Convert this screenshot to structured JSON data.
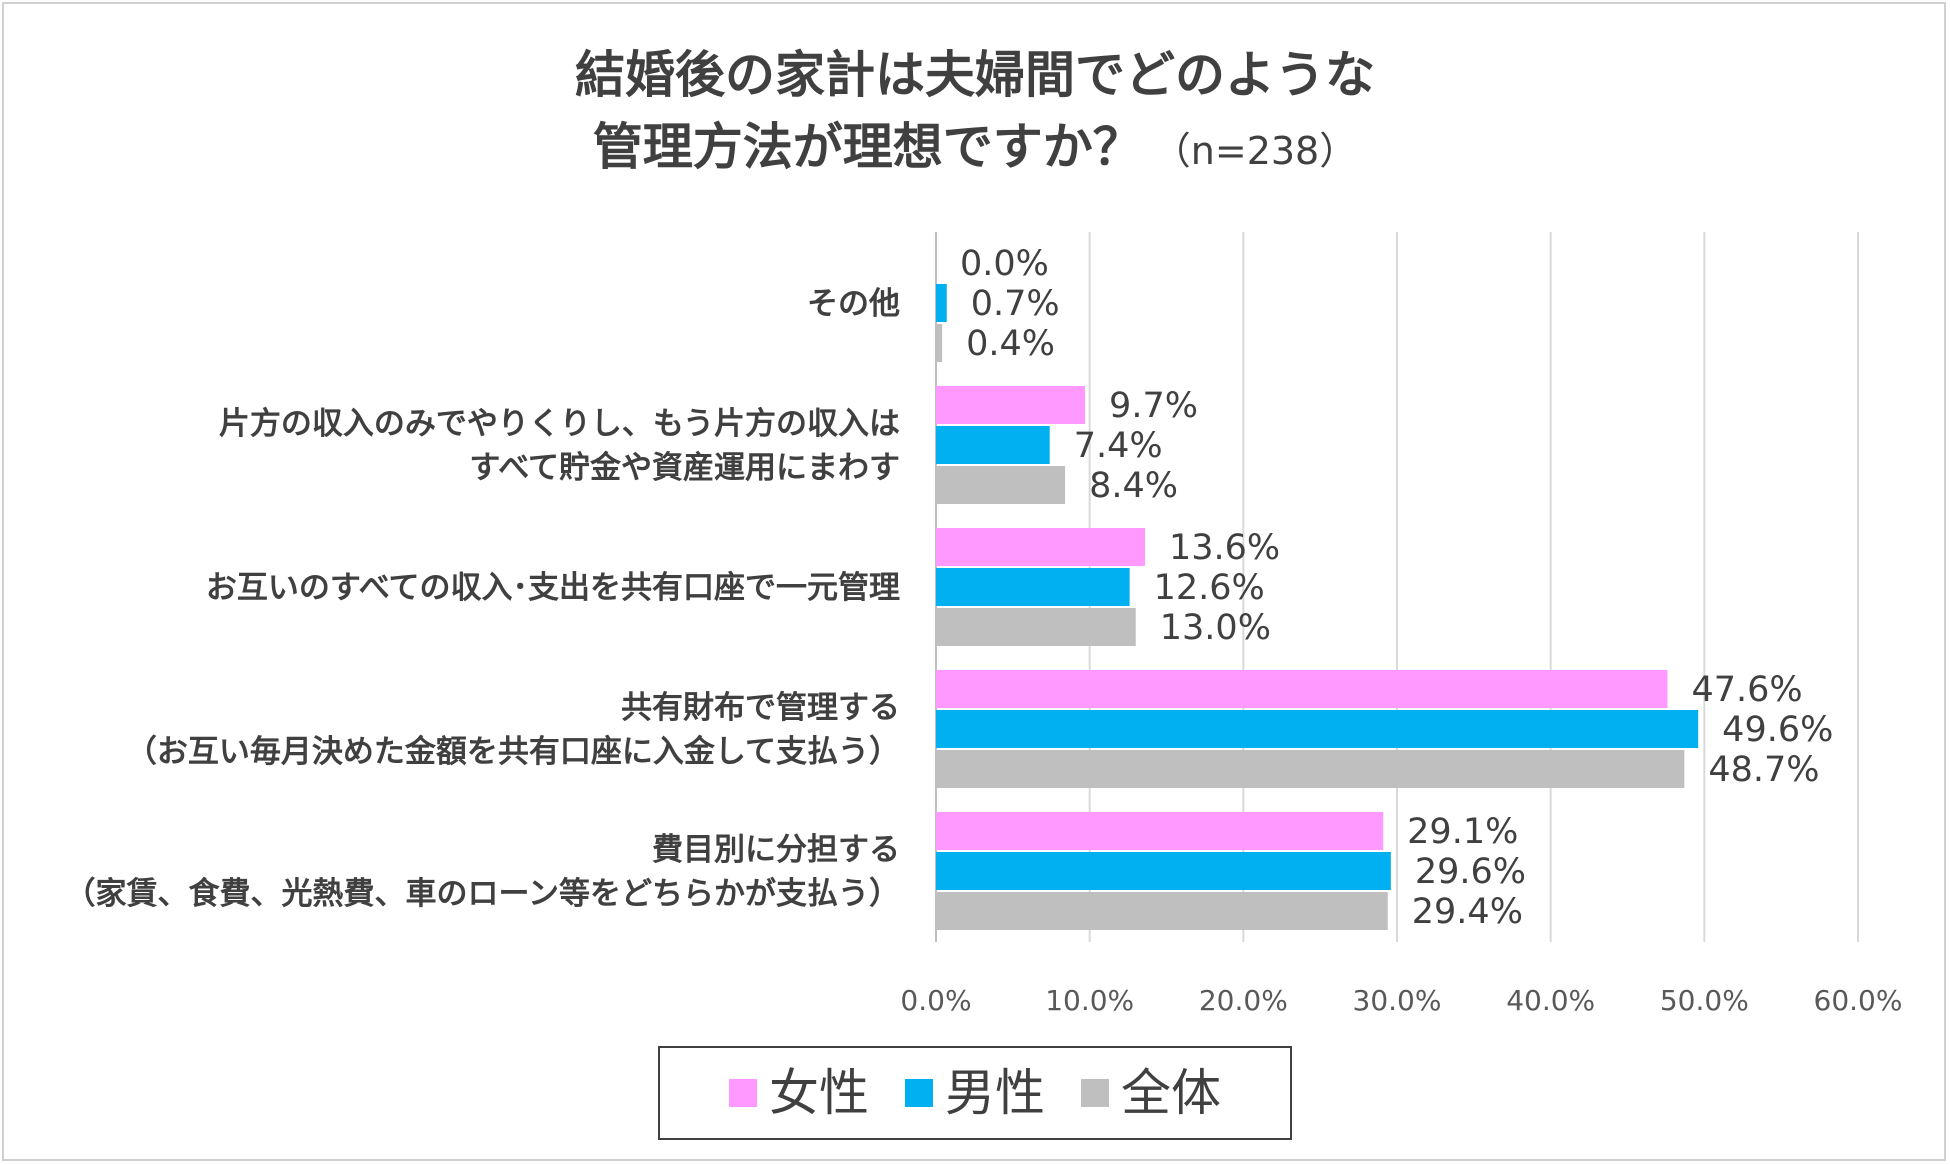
{
  "title": {
    "line1": "結婚後の家計は夫婦間でどのような",
    "line2": "管理方法が理想ですか？",
    "sub": "（n=238）"
  },
  "chart_data": {
    "type": "bar",
    "orientation": "horizontal",
    "categories": [
      [
        "その他"
      ],
      [
        "片方の収入のみでやりくりし、もう片方の収入は",
        "すべて貯金や資産運用にまわす"
      ],
      [
        "お互いのすべての収入･支出を共有口座で一元管理"
      ],
      [
        "共有財布で管理する",
        "（お互い毎月決めた金額を共有口座に入金して支払う）"
      ],
      [
        "費目別に分担する",
        "（家賃、食費、光熱費、車のローン等をどちらかが支払う）"
      ]
    ],
    "series": [
      {
        "name": "女性",
        "color": "#ff99ff",
        "values": [
          0.0,
          9.7,
          13.6,
          47.6,
          29.1
        ],
        "labels": [
          "0.0%",
          "9.7%",
          "13.6%",
          "47.6%",
          "29.1%"
        ]
      },
      {
        "name": "男性",
        "color": "#00b0f0",
        "values": [
          0.7,
          7.4,
          12.6,
          49.6,
          29.6
        ],
        "labels": [
          "0.7%",
          "7.4%",
          "12.6%",
          "49.6%",
          "29.6%"
        ]
      },
      {
        "name": "全体",
        "color": "#bfbfbf",
        "values": [
          0.4,
          8.4,
          13.0,
          48.7,
          29.4
        ],
        "labels": [
          "0.4%",
          "8.4%",
          "13.0%",
          "48.7%",
          "29.4%"
        ]
      }
    ],
    "xlim": [
      0,
      60
    ],
    "x_ticks": [
      "0.0%",
      "10.0%",
      "20.0%",
      "30.0%",
      "40.0%",
      "50.0%",
      "60.0%"
    ],
    "grid": true,
    "legend_position": "bottom"
  }
}
